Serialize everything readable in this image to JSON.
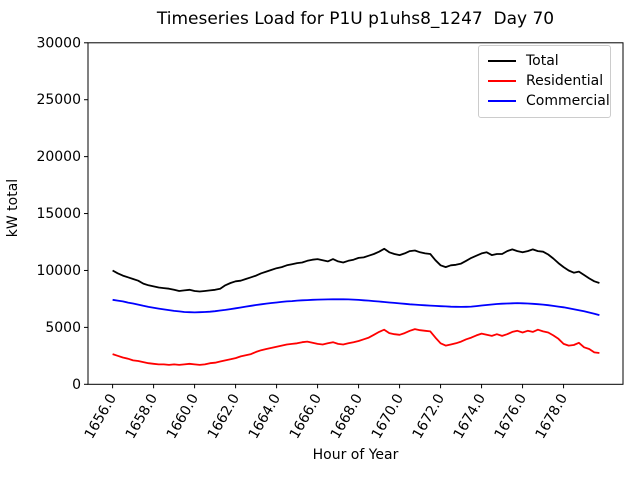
{
  "chart_data": {
    "type": "line",
    "title": "Timeseries Load for P1U p1uhs8_1247  Day 70",
    "xlabel": "Hour of Year",
    "ylabel": "kW total",
    "xlim": [
      1654.8,
      1680.9
    ],
    "ylim": [
      0,
      30000
    ],
    "grid": false,
    "xticks": [
      1656,
      1658,
      1660,
      1662,
      1664,
      1666,
      1668,
      1670,
      1672,
      1674,
      1676,
      1678
    ],
    "xtick_labels": [
      "1656.0",
      "1658.0",
      "1660.0",
      "1662.0",
      "1664.0",
      "1666.0",
      "1668.0",
      "1670.0",
      "1672.0",
      "1674.0",
      "1676.0",
      "1678.0"
    ],
    "yticks": [
      0,
      5000,
      10000,
      15000,
      20000,
      25000,
      30000
    ],
    "ytick_labels": [
      "0",
      "5000",
      "10000",
      "15000",
      "20000",
      "25000",
      "30000"
    ],
    "x_start": 1656.0,
    "x_step": 0.25,
    "x_end": 1679.75,
    "legend": {
      "position": "upper right",
      "entries": [
        "Total",
        "Residential",
        "Commercial"
      ]
    },
    "series": [
      {
        "name": "Total",
        "color": "#000000",
        "values": [
          10000,
          9750,
          9550,
          9400,
          9250,
          9100,
          8850,
          8700,
          8600,
          8500,
          8450,
          8400,
          8300,
          8200,
          8250,
          8300,
          8200,
          8150,
          8200,
          8250,
          8300,
          8400,
          8700,
          8900,
          9050,
          9100,
          9250,
          9400,
          9550,
          9750,
          9900,
          10050,
          10200,
          10300,
          10450,
          10550,
          10650,
          10700,
          10850,
          10950,
          11000,
          10900,
          10800,
          11000,
          10800,
          10700,
          10850,
          10950,
          11100,
          11150,
          11300,
          11450,
          11650,
          11900,
          11600,
          11450,
          11350,
          11500,
          11700,
          11750,
          11600,
          11500,
          11450,
          10900,
          10450,
          10300,
          10450,
          10500,
          10600,
          10850,
          11100,
          11300,
          11500,
          11600,
          11350,
          11450,
          11450,
          11700,
          11850,
          11700,
          11600,
          11700,
          11850,
          11700,
          11650,
          11400,
          11050,
          10650,
          10300,
          10000,
          9800,
          9900,
          9600,
          9300,
          9050,
          8900
        ]
      },
      {
        "name": "Residential",
        "color": "#ff0000",
        "values": [
          2650,
          2500,
          2350,
          2250,
          2100,
          2050,
          1950,
          1850,
          1800,
          1750,
          1750,
          1700,
          1750,
          1700,
          1750,
          1800,
          1750,
          1700,
          1750,
          1850,
          1900,
          2000,
          2100,
          2200,
          2300,
          2450,
          2550,
          2650,
          2850,
          3000,
          3100,
          3200,
          3300,
          3400,
          3500,
          3550,
          3600,
          3700,
          3750,
          3650,
          3550,
          3500,
          3600,
          3700,
          3550,
          3500,
          3600,
          3700,
          3800,
          3950,
          4100,
          4350,
          4600,
          4800,
          4500,
          4400,
          4350,
          4500,
          4700,
          4850,
          4750,
          4700,
          4650,
          4100,
          3600,
          3400,
          3500,
          3600,
          3750,
          3950,
          4100,
          4300,
          4450,
          4350,
          4250,
          4400,
          4250,
          4400,
          4600,
          4700,
          4550,
          4700,
          4600,
          4800,
          4650,
          4550,
          4300,
          4000,
          3550,
          3400,
          3450,
          3650,
          3250,
          3100,
          2800,
          2750
        ]
      },
      {
        "name": "Commercial",
        "color": "#0000ff",
        "values": [
          7420,
          7350,
          7280,
          7180,
          7100,
          7000,
          6900,
          6800,
          6720,
          6650,
          6580,
          6520,
          6450,
          6400,
          6350,
          6330,
          6320,
          6330,
          6350,
          6380,
          6420,
          6480,
          6540,
          6610,
          6680,
          6750,
          6830,
          6900,
          6970,
          7030,
          7090,
          7140,
          7190,
          7240,
          7280,
          7310,
          7350,
          7380,
          7400,
          7420,
          7440,
          7450,
          7460,
          7470,
          7470,
          7470,
          7460,
          7440,
          7410,
          7380,
          7350,
          7310,
          7270,
          7230,
          7190,
          7150,
          7110,
          7070,
          7030,
          7000,
          6970,
          6940,
          6910,
          6890,
          6860,
          6840,
          6820,
          6810,
          6800,
          6810,
          6830,
          6870,
          6920,
          6970,
          7010,
          7050,
          7080,
          7100,
          7120,
          7130,
          7120,
          7100,
          7070,
          7040,
          7000,
          6950,
          6890,
          6830,
          6760,
          6680,
          6600,
          6510,
          6410,
          6310,
          6200,
          6080
        ]
      }
    ]
  }
}
